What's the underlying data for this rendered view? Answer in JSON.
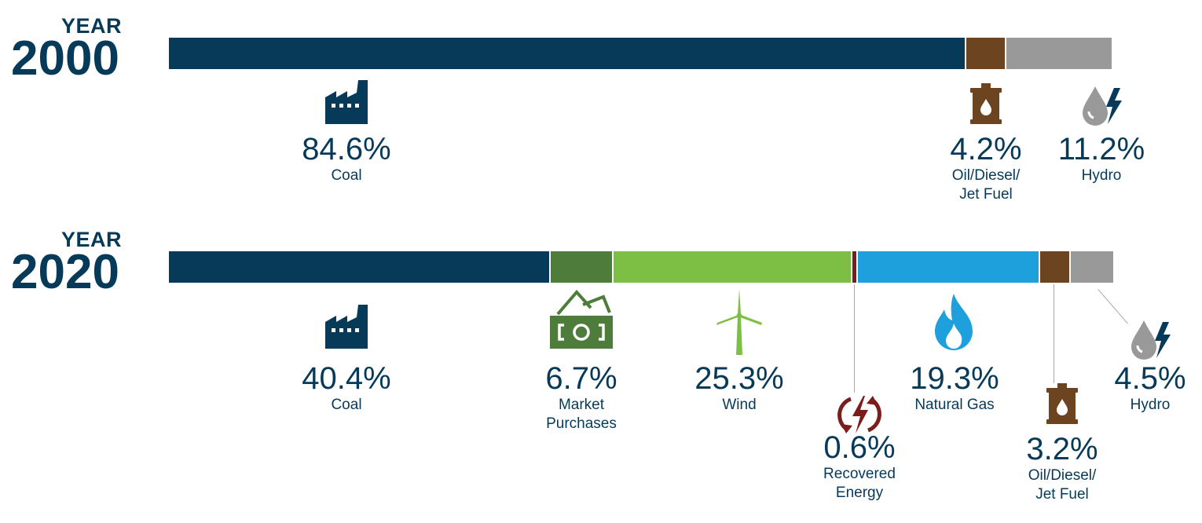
{
  "colors": {
    "coal": "#063a58",
    "oil": "#6c4520",
    "hydro": "#999999",
    "market": "#4d7c3b",
    "wind": "#7dbe45",
    "recovered": "#7a1e1c",
    "gas": "#1ea0dc",
    "text": "#063a58"
  },
  "chart_data": [
    {
      "type": "bar",
      "orientation": "horizontal-stacked",
      "year_label": "YEAR",
      "year": "2000",
      "units": "%",
      "segments": [
        {
          "key": "coal",
          "name": "Coal",
          "value": 84.6,
          "display": "84.6%",
          "icon": "factory-icon"
        },
        {
          "key": "oil",
          "name": "Oil/Diesel/ Jet Fuel",
          "name_lines": [
            "Oil/Diesel/",
            "Jet Fuel"
          ],
          "value": 4.2,
          "display": "4.2%",
          "icon": "oil-barrel-icon"
        },
        {
          "key": "hydro",
          "name": "Hydro",
          "value": 11.2,
          "display": "11.2%",
          "icon": "hydro-drop-bolt-icon"
        }
      ]
    },
    {
      "type": "bar",
      "orientation": "horizontal-stacked",
      "year_label": "YEAR",
      "year": "2020",
      "units": "%",
      "segments": [
        {
          "key": "coal",
          "name": "Coal",
          "value": 40.4,
          "display": "40.4%",
          "icon": "factory-icon"
        },
        {
          "key": "market",
          "name": "Market Purchases",
          "name_lines": [
            "Market",
            "Purchases"
          ],
          "value": 6.7,
          "display": "6.7%",
          "icon": "money-icon"
        },
        {
          "key": "wind",
          "name": "Wind",
          "value": 25.3,
          "display": "25.3%",
          "icon": "wind-turbine-icon"
        },
        {
          "key": "recovered",
          "name": "Recovered Energy",
          "name_lines": [
            "Recovered",
            "Energy"
          ],
          "value": 0.6,
          "display": "0.6%",
          "icon": "recycle-bolt-icon"
        },
        {
          "key": "gas",
          "name": "Natural Gas",
          "value": 19.3,
          "display": "19.3%",
          "icon": "flame-icon"
        },
        {
          "key": "oil",
          "name": "Oil/Diesel/ Jet Fuel",
          "name_lines": [
            "Oil/Diesel/",
            "Jet Fuel"
          ],
          "value": 3.2,
          "display": "3.2%",
          "icon": "oil-barrel-icon"
        },
        {
          "key": "hydro",
          "name": "Hydro",
          "value": 4.5,
          "display": "4.5%",
          "icon": "hydro-drop-bolt-icon"
        }
      ]
    }
  ]
}
